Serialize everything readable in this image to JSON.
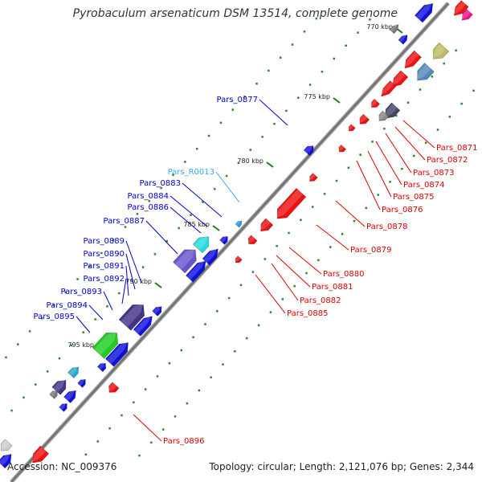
{
  "title": "Pyrobaculum arsenaticum DSM 13514, complete genome",
  "footer": {
    "accession": "Accession: NC_009376",
    "summary": "Topology: circular; Length: 2,121,076 bp; Genes: 2,344"
  },
  "colors": {
    "backbone": "#7a7a7a",
    "forward_label": "#0000cc",
    "reverse_label": "#dd0000",
    "rna_label": "#33aaee",
    "tick": "#227722"
  },
  "scale_ticks": [
    "770 kbp",
    "775 kbp",
    "780 kbp",
    "785 kbp",
    "790 kbp",
    "795 kbp"
  ],
  "forward_labels": [
    "Pars_0877",
    "Pars_R0013",
    "Pars_0883",
    "Pars_0884",
    "Pars_0886",
    "Pars_0887",
    "Pars_0889",
    "Pars_0890",
    "Pars_0891",
    "Pars_0892",
    "Pars_0893",
    "Pars_0894",
    "Pars_0895"
  ],
  "reverse_labels": [
    "Pars_0871",
    "Pars_0872",
    "Pars_0873",
    "Pars_0874",
    "Pars_0875",
    "Pars_0876",
    "Pars_0878",
    "Pars_0879",
    "Pars_0880",
    "Pars_0881",
    "Pars_0882",
    "Pars_0885",
    "Pars_0896"
  ]
}
